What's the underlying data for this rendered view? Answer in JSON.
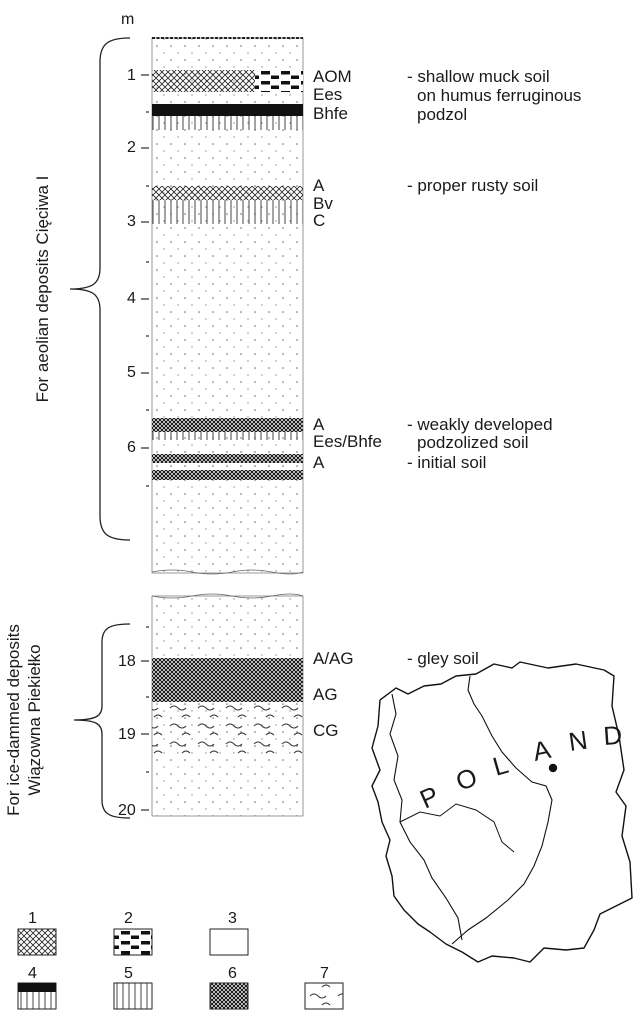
{
  "unit_label": "m",
  "upper_column": {
    "ticks": [
      "1",
      "2",
      "3",
      "4",
      "5",
      "6"
    ],
    "bracket_label": "For aeolian deposits Cięciwa I",
    "horizons": [
      {
        "code": "AOM",
        "description": "- shallow muck soil"
      },
      {
        "code": "Ees",
        "description": "on humus ferruginous"
      },
      {
        "code": "Bhfe",
        "description": "podzol"
      },
      {
        "code": "A",
        "description": "- proper rusty soil"
      },
      {
        "code": "Bv",
        "description": ""
      },
      {
        "code": "C",
        "description": ""
      },
      {
        "code": "A",
        "description": "- weakly developed"
      },
      {
        "code": "Ees/Bhfe",
        "description": "podzolized soil"
      },
      {
        "code": "A",
        "description": "- initial soil"
      }
    ]
  },
  "lower_column": {
    "ticks": [
      "18",
      "19",
      "20"
    ],
    "bracket_label_line1": "For ice-dammed deposits",
    "bracket_label_line2": "Wiązowna Piekiełko",
    "horizons": [
      {
        "code": "A/AG",
        "description": "- gley soil"
      },
      {
        "code": "AG",
        "description": ""
      },
      {
        "code": "CG",
        "description": ""
      }
    ]
  },
  "legend": [
    "1",
    "2",
    "3",
    "4",
    "5",
    "6",
    "7"
  ],
  "map": {
    "country_letters": [
      "P",
      "O",
      "L",
      "A",
      "N",
      "D"
    ]
  }
}
